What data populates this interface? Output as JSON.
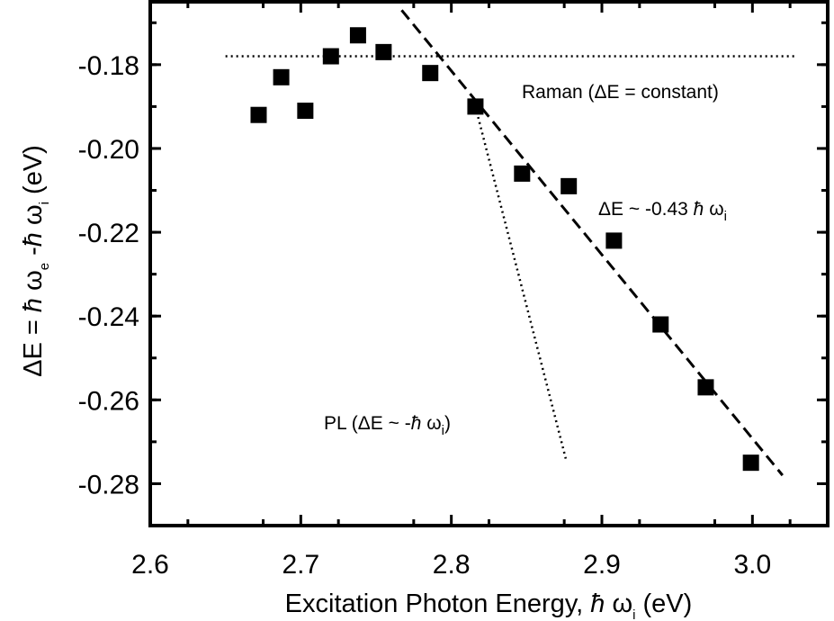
{
  "chart_data": {
    "type": "scatter",
    "title": "",
    "xlabel": {
      "main": "Excitation Photon Energy, ",
      "hbar": "ħ",
      "omega": " ω",
      "sub": "i",
      "unit": " (eV)"
    },
    "ylabel": {
      "delta": "ΔE = ",
      "hbar1": "ħ",
      "omega1": " ω",
      "sub1": "e",
      "minus": " -",
      "hbar2": "ħ",
      "omega2": " ω",
      "sub2": "i",
      "unit": " (eV)"
    },
    "xlim": [
      2.6,
      3.05
    ],
    "ylim": [
      -0.29,
      -0.165
    ],
    "x_ticks": [
      "2.6",
      "2.7",
      "2.8",
      "2.9",
      "3.0"
    ],
    "x_tick_values": [
      2.6,
      2.7,
      2.8,
      2.9,
      3.0
    ],
    "y_ticks": [
      "-0.18",
      "-0.20",
      "-0.22",
      "-0.24",
      "-0.26",
      "-0.28"
    ],
    "y_tick_values": [
      -0.18,
      -0.2,
      -0.22,
      -0.24,
      -0.26,
      -0.28
    ],
    "grid": false,
    "series": [
      {
        "marker": "square",
        "color": "#000000",
        "x": [
          2.672,
          2.687,
          2.703,
          2.72,
          2.738,
          2.755,
          2.786,
          2.816,
          2.847,
          2.878,
          2.908,
          2.939,
          2.969,
          2.999
        ],
        "y": [
          -0.192,
          -0.183,
          -0.191,
          -0.178,
          -0.173,
          -0.177,
          -0.182,
          -0.19,
          -0.206,
          -0.209,
          -0.222,
          -0.242,
          -0.257,
          -0.275
        ]
      }
    ],
    "lines": [
      {
        "style": "dotted",
        "x": [
          2.65,
          3.03
        ],
        "y": [
          -0.178,
          -0.178
        ]
      },
      {
        "style": "dashed",
        "x": [
          2.767,
          3.02
        ],
        "y": [
          -0.167,
          -0.278
        ]
      },
      {
        "style": "dotted",
        "x": [
          2.816,
          2.876
        ],
        "y": [
          -0.19,
          -0.274
        ]
      }
    ],
    "annotations": {
      "raman": {
        "text": "Raman (ΔE = constant)"
      },
      "slope": {
        "pre": "ΔE ~ -0.43 ",
        "hbar": "ħ",
        "omega": " ω",
        "sub": "i"
      },
      "pl": {
        "pre": "PL (ΔE ~ -",
        "hbar": "ħ",
        "omega": " ω",
        "sub": "i",
        "post": ")"
      }
    }
  }
}
